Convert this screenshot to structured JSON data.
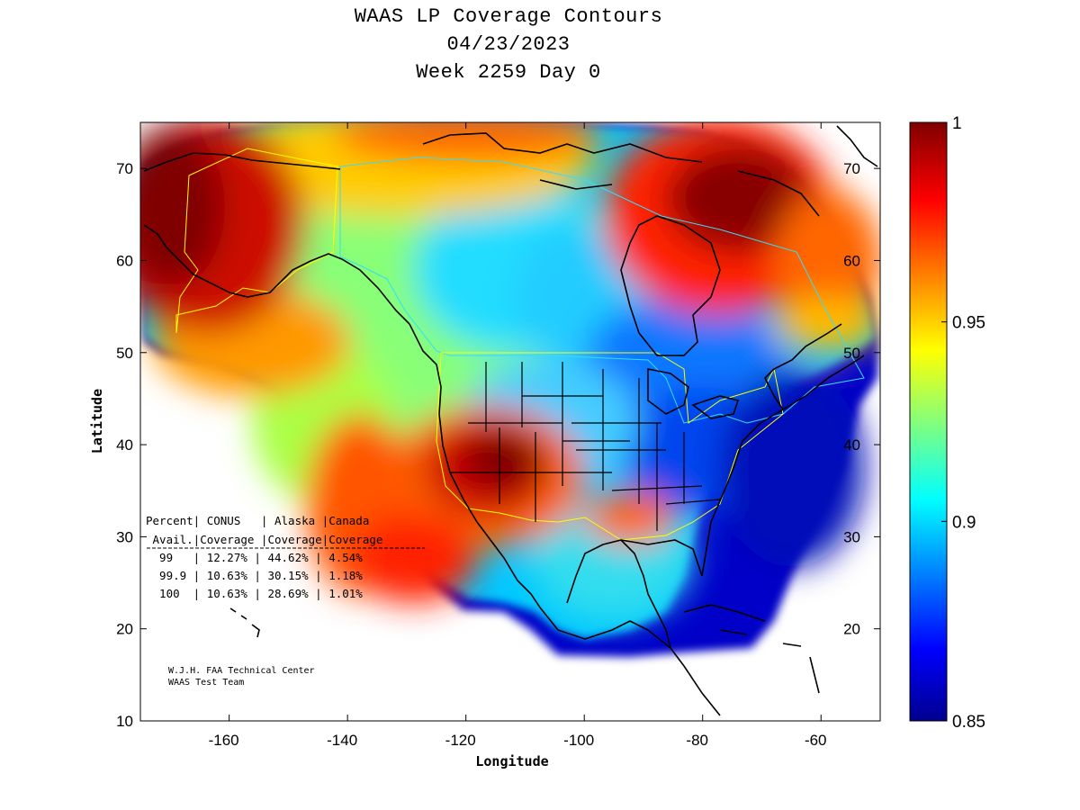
{
  "title": {
    "line1": "WAAS LP Coverage Contours",
    "line2": "04/23/2023",
    "line3": "Week 2259 Day 0"
  },
  "axes": {
    "xlabel": "Longitude",
    "ylabel": "Latitude",
    "xlim": [
      -175,
      -50
    ],
    "ylim": [
      10,
      75
    ],
    "xticks": [
      -160,
      -140,
      -120,
      -100,
      -80,
      -60
    ],
    "yticks": [
      10,
      20,
      30,
      40,
      50,
      60,
      70
    ],
    "xtick_labels": [
      "-160",
      "-140",
      "-120",
      "-100",
      "-80",
      "-60"
    ],
    "ytick_labels_left": [
      "10",
      "20",
      "30",
      "40",
      "50",
      "60",
      "70"
    ],
    "ytick_labels_right": [
      "20",
      "30",
      "40",
      "50",
      "60",
      "70"
    ]
  },
  "colorbar": {
    "min": 0.85,
    "max": 1,
    "labels": [
      "1",
      "0.95",
      "0.9",
      "0.85"
    ],
    "values": [
      1,
      0.95,
      0.9,
      0.85
    ],
    "colormap": "jet"
  },
  "coverage_table": {
    "header1": "Percent| CONUS   | Alaska |Canada",
    "header2": " Avail.|Coverage |Coverage|Coverage",
    "rows": [
      "  99   | 12.27% | 44.62% | 4.54%",
      "  99.9 | 10.63% | 30.15% | 1.18%",
      "  100  | 10.63% | 28.69% | 1.01%"
    ]
  },
  "credit": {
    "line1": "W.J.H. FAA Technical Center",
    "line2": "WAAS Test Team"
  },
  "colors": {
    "low": "#00008f",
    "mid": "#00ffff",
    "high": "#800000",
    "conus_outline": "#ffff00",
    "alaska_outline": "#ffff00",
    "canada_outline": "#00ffff"
  }
}
